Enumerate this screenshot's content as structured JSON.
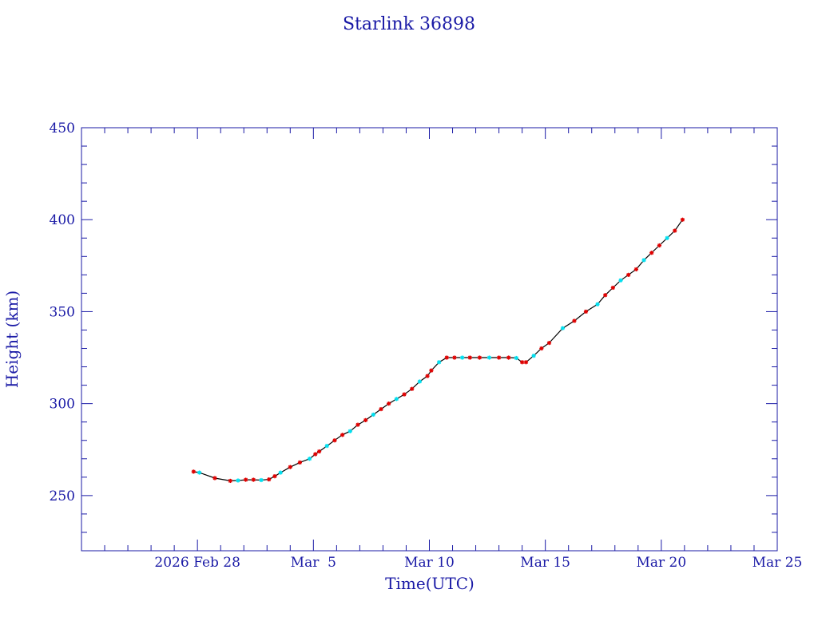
{
  "chart_data": {
    "type": "line",
    "title": "Starlink 36898",
    "xlabel": "Time(UTC)",
    "ylabel": "Height (km)",
    "ylim": [
      220,
      450
    ],
    "xlim": [
      "2026-02-23",
      "2026-03-25"
    ],
    "x_ticks": [
      {
        "date": "2026-02-28",
        "label": "2026 Feb 28"
      },
      {
        "date": "2026-03-05",
        "label": "Mar  5"
      },
      {
        "date": "2026-03-10",
        "label": "Mar 10"
      },
      {
        "date": "2026-03-15",
        "label": "Mar 15"
      },
      {
        "date": "2026-03-20",
        "label": "Mar 20"
      },
      {
        "date": "2026-03-25",
        "label": "Mar 25"
      }
    ],
    "y_ticks": [
      250,
      300,
      350,
      400,
      450
    ],
    "grid": false,
    "colors": {
      "axis": "#1a1aa6",
      "line": "#000000",
      "marker_primary": "#e00000",
      "marker_secondary": "#00e0f0"
    },
    "series": [
      {
        "x": [
          "2026-02-27 20:00",
          "2026-02-28 02:00",
          "2026-02-28 18:00",
          "2026-03-01 10:00",
          "2026-03-01 18:00",
          "2026-03-02 02:00",
          "2026-03-02 10:00",
          "2026-03-02 18:00",
          "2026-03-03 02:00",
          "2026-03-03 08:00",
          "2026-03-03 14:00",
          "2026-03-04 00:00",
          "2026-03-04 10:00",
          "2026-03-04 20:00",
          "2026-03-05 02:00",
          "2026-03-05 06:00",
          "2026-03-05 14:00",
          "2026-03-05 22:00",
          "2026-03-06 06:00",
          "2026-03-06 14:00",
          "2026-03-06 22:00",
          "2026-03-07 06:00",
          "2026-03-07 14:00",
          "2026-03-07 22:00",
          "2026-03-08 06:00",
          "2026-03-08 14:00",
          "2026-03-08 22:00",
          "2026-03-09 06:00",
          "2026-03-09 14:00",
          "2026-03-09 22:00",
          "2026-03-10 02:00",
          "2026-03-10 10:00",
          "2026-03-10 18:00",
          "2026-03-11 02:00",
          "2026-03-11 10:00",
          "2026-03-11 18:00",
          "2026-03-12 04:00",
          "2026-03-12 14:00",
          "2026-03-13 00:00",
          "2026-03-13 10:00",
          "2026-03-13 18:00",
          "2026-03-14 00:00",
          "2026-03-14 04:00",
          "2026-03-14 12:00",
          "2026-03-14 20:00",
          "2026-03-15 04:00",
          "2026-03-15 18:00",
          "2026-03-16 06:00",
          "2026-03-16 18:00",
          "2026-03-17 06:00",
          "2026-03-17 14:00",
          "2026-03-17 22:00",
          "2026-03-18 06:00",
          "2026-03-18 14:00",
          "2026-03-18 22:00",
          "2026-03-19 06:00",
          "2026-03-19 14:00",
          "2026-03-19 22:00",
          "2026-03-20 06:00",
          "2026-03-20 14:00",
          "2026-03-20 22:00"
        ],
        "values": [
          263,
          262.5,
          259.5,
          258,
          258.2,
          258.6,
          258.6,
          258.4,
          258.8,
          260.5,
          262.5,
          265.5,
          268,
          270,
          272.5,
          274,
          277,
          280,
          283,
          285,
          288.5,
          291,
          294,
          297,
          300,
          302.5,
          305,
          308,
          312,
          315,
          318,
          322.5,
          325,
          325,
          325,
          325,
          325,
          325,
          325,
          325,
          324.8,
          322.5,
          322.5,
          326,
          330,
          333,
          341,
          345,
          350,
          354,
          359,
          363,
          367,
          370,
          373,
          378,
          382,
          386,
          390,
          394,
          400
        ]
      }
    ]
  }
}
